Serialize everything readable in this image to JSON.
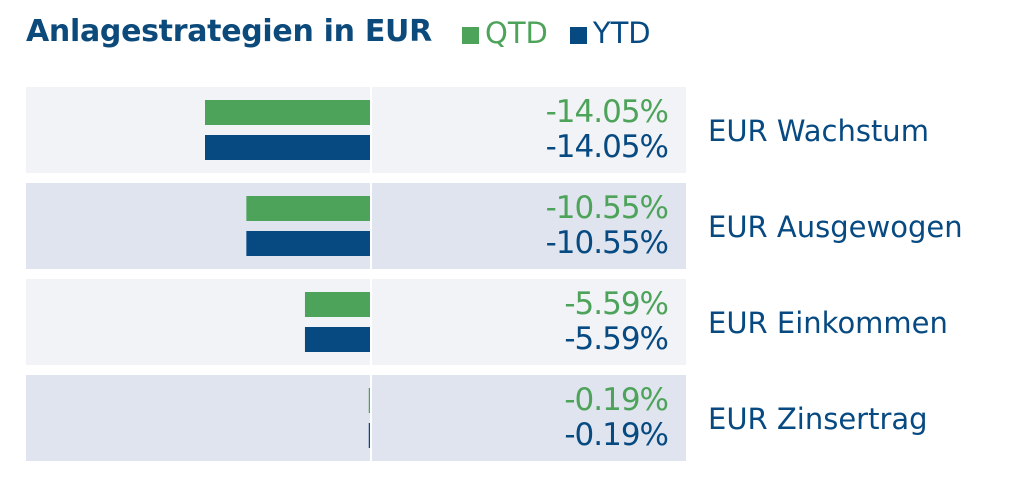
{
  "chart_data": {
    "type": "bar",
    "title": "Anlagestrategien in EUR",
    "unit": "%",
    "categories": [
      "EUR Wachstum",
      "EUR Ausgewogen",
      "EUR Einkommen",
      "EUR Zinsertrag"
    ],
    "series": [
      {
        "name": "QTD",
        "color": "#4ea35a",
        "values": [
          -14.05,
          -10.55,
          -5.59,
          -0.19
        ]
      },
      {
        "name": "YTD",
        "color": "#074a82",
        "values": [
          -14.05,
          -10.55,
          -5.59,
          -0.19
        ]
      }
    ],
    "value_labels": [
      [
        "-14.05%",
        "-14.05%"
      ],
      [
        "-10.55%",
        "-10.55%"
      ],
      [
        "-5.59%",
        "-5.59%"
      ],
      [
        "-0.19%",
        "-0.19%"
      ]
    ],
    "orientation": "horizontal",
    "legend_position": "top",
    "row_colors": [
      "#f1f3f7",
      "#dfe4ee"
    ]
  }
}
